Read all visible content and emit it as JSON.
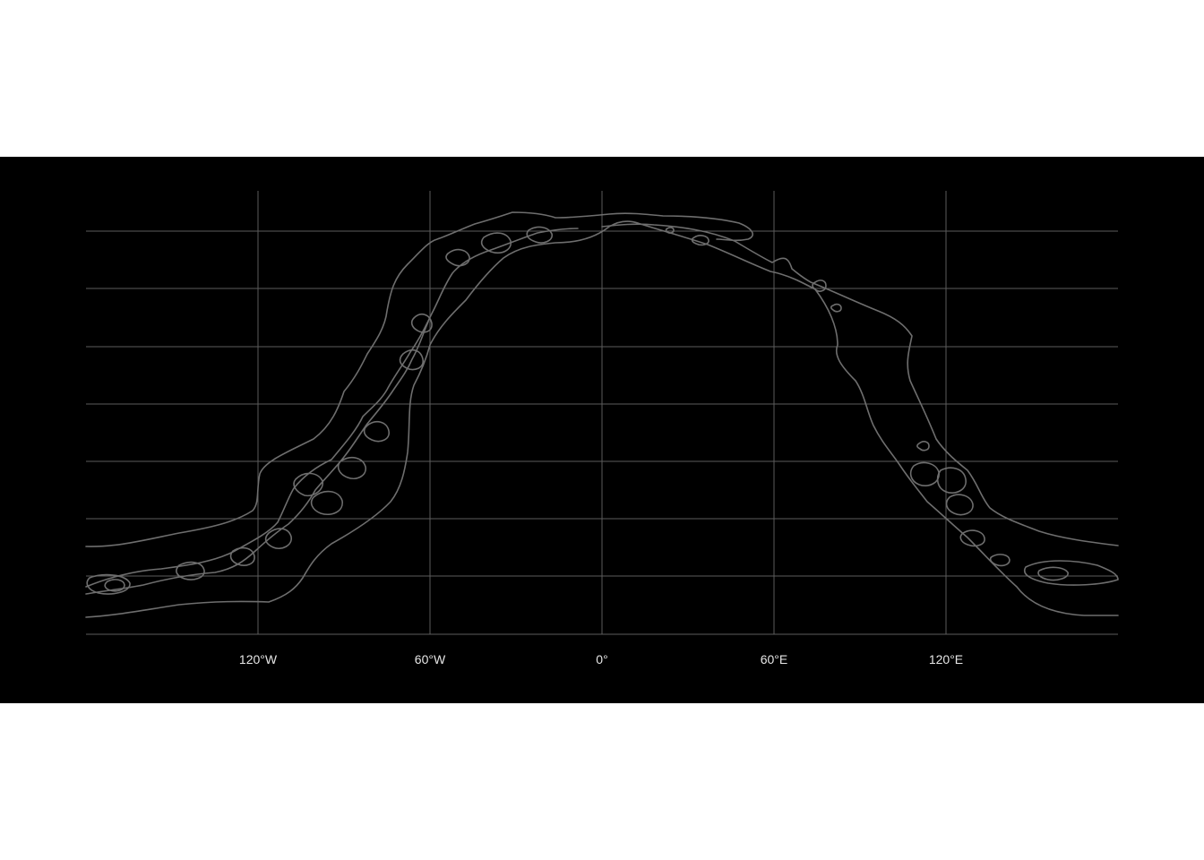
{
  "map": {
    "projection": "equirectangular",
    "background_color": "#000000",
    "grid_color": "#5c5c5c",
    "contour_color": "#6e6e6e",
    "label_color": "#e6e6e6",
    "lon_range": [
      -180,
      180
    ],
    "lon_ticks": [
      -120,
      -60,
      0,
      60,
      120
    ],
    "lon_tick_labels": [
      "120°W",
      "60°W",
      "0°",
      "60°E",
      "120°E"
    ],
    "lat_gridline_count": 8,
    "latitude_labels_shown": false,
    "features": "contour lines tracing a band arching from the western Pacific/South America region over the North Atlantic/Europe and down through Asia"
  }
}
